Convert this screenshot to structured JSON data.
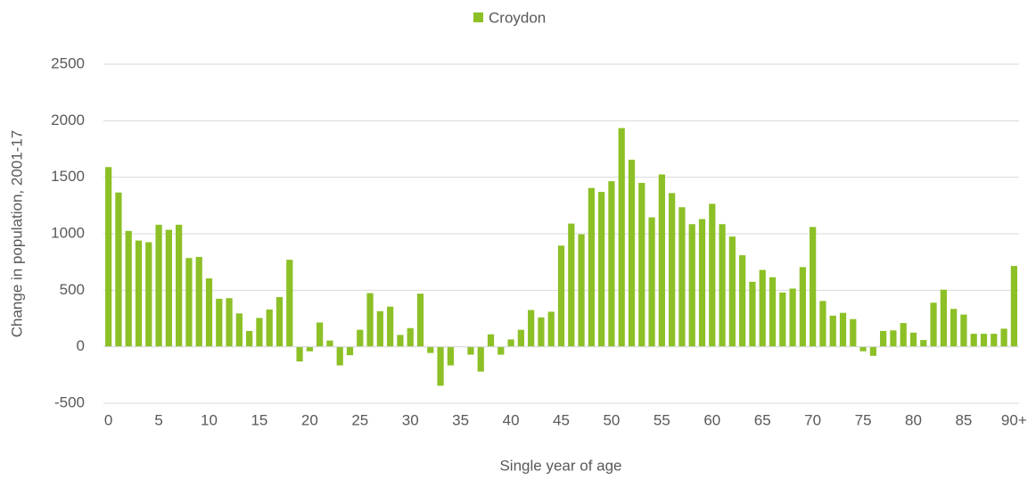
{
  "chart_data": {
    "type": "bar",
    "legend": "top",
    "series": [
      {
        "name": "Croydon",
        "color": "#8cc026",
        "values": [
          1590,
          1365,
          1025,
          940,
          925,
          1080,
          1035,
          1080,
          785,
          795,
          605,
          425,
          430,
          295,
          140,
          255,
          330,
          440,
          770,
          -130,
          -40,
          215,
          55,
          -165,
          -75,
          150,
          475,
          315,
          355,
          105,
          165,
          470,
          -55,
          -345,
          -165,
          0,
          -70,
          -220,
          110,
          -70,
          65,
          150,
          325,
          260,
          310,
          895,
          1090,
          995,
          1405,
          1370,
          1465,
          1935,
          1655,
          1450,
          1145,
          1525,
          1360,
          1235,
          1085,
          1130,
          1265,
          1085,
          975,
          810,
          575,
          680,
          615,
          480,
          515,
          705,
          1060,
          405,
          275,
          300,
          245,
          -40,
          -80,
          140,
          145,
          210,
          125,
          60,
          390,
          505,
          335,
          285,
          115,
          115,
          115,
          160,
          715
        ]
      }
    ],
    "categories": [
      "0",
      null,
      null,
      null,
      null,
      "5",
      null,
      null,
      null,
      null,
      "10",
      null,
      null,
      null,
      null,
      "15",
      null,
      null,
      null,
      null,
      "20",
      null,
      null,
      null,
      null,
      "25",
      null,
      null,
      null,
      null,
      "30",
      null,
      null,
      null,
      null,
      "35",
      null,
      null,
      null,
      null,
      "40",
      null,
      null,
      null,
      null,
      "45",
      null,
      null,
      null,
      null,
      "50",
      null,
      null,
      null,
      null,
      "55",
      null,
      null,
      null,
      null,
      "60",
      null,
      null,
      null,
      null,
      "65",
      null,
      null,
      null,
      null,
      "70",
      null,
      null,
      null,
      null,
      "75",
      null,
      null,
      null,
      null,
      "80",
      null,
      null,
      null,
      null,
      "85",
      null,
      null,
      null,
      null,
      "90+"
    ],
    "x_label": "Single year of age",
    "y_label": "Change in population, 2001-17",
    "ylim": [
      -500,
      2500
    ],
    "yticks": [
      -500,
      0,
      500,
      1000,
      1500,
      2000,
      2500
    ],
    "grid": true
  }
}
